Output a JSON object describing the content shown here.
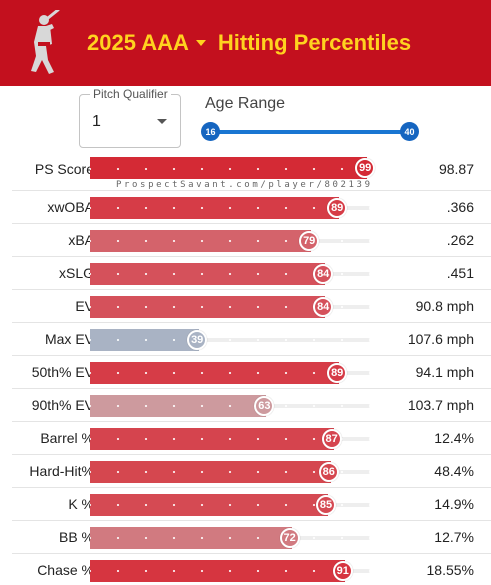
{
  "header": {
    "title_season": "2025 AAA",
    "title_main": "Hitting Percentiles",
    "background": "#c3101e",
    "title_color": "#ffd21f"
  },
  "controls": {
    "pitch_qualifier": {
      "label": "Pitch Qualifier",
      "value": "1"
    },
    "age_range": {
      "label": "Age Range",
      "min_label": "16",
      "max_label": "40"
    }
  },
  "watermark": "ProspectSavant.com/player/802139",
  "stats": [
    {
      "label": "PS Score",
      "percentile": 99,
      "value": "98.87",
      "color": "#d42a35"
    },
    {
      "label": "xwOBA",
      "percentile": 89,
      "value": ".366",
      "color": "#d63c47"
    },
    {
      "label": "xBA",
      "percentile": 79,
      "value": ".262",
      "color": "#d4636b"
    },
    {
      "label": "xSLG",
      "percentile": 84,
      "value": ".451",
      "color": "#d5515b"
    },
    {
      "label": "EV",
      "percentile": 84,
      "value": "90.8 mph",
      "color": "#d5515b"
    },
    {
      "label": "Max EV",
      "percentile": 39,
      "value": "107.6 mph",
      "color": "#a9b3c4"
    },
    {
      "label": "50th% EV",
      "percentile": 89,
      "value": "94.1 mph",
      "color": "#d63c47"
    },
    {
      "label": "90th% EV",
      "percentile": 63,
      "value": "103.7 mph",
      "color": "#cd9a9e"
    },
    {
      "label": "Barrel %",
      "percentile": 87,
      "value": "12.4%",
      "color": "#d5444e"
    },
    {
      "label": "Hard-Hit%",
      "percentile": 86,
      "value": "48.4%",
      "color": "#d5474f"
    },
    {
      "label": "K %",
      "percentile": 85,
      "value": "14.9%",
      "color": "#d54a53"
    },
    {
      "label": "BB %",
      "percentile": 72,
      "value": "12.7%",
      "color": "#d17a80"
    },
    {
      "label": "Chase %",
      "percentile": 91,
      "value": "18.55%",
      "color": "#d63540"
    }
  ]
}
